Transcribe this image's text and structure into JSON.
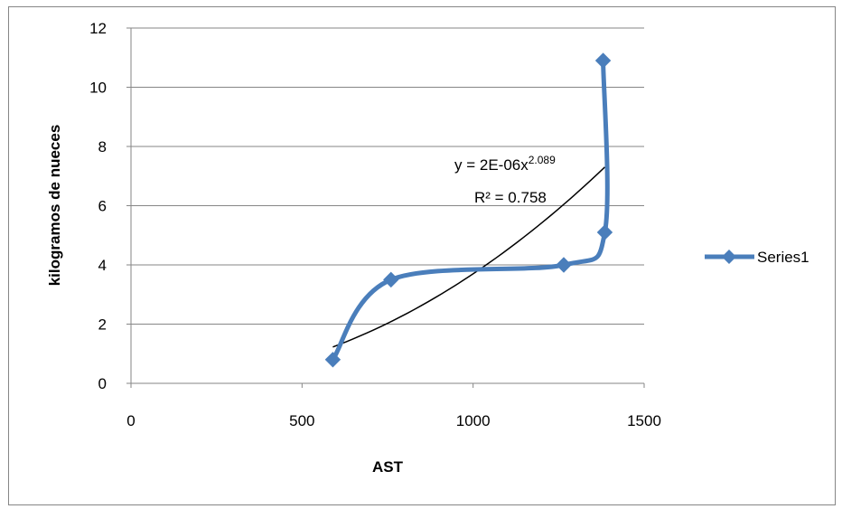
{
  "chart_data": {
    "type": "scatter",
    "xlabel": "AST",
    "ylabel": "kilogramos de nueces",
    "xlim": [
      0,
      1500
    ],
    "ylim": [
      0,
      12
    ],
    "x_ticks": [
      "0",
      "500",
      "1000",
      "1500"
    ],
    "y_ticks": [
      "0",
      "2",
      "4",
      "6",
      "8",
      "10",
      "12"
    ],
    "grid": "horizontal",
    "legend_position": "right",
    "series": [
      {
        "name": "Series1",
        "color": "#4a7ebb",
        "marker": "diamond",
        "line": "smooth",
        "x": [
          590,
          760,
          1265,
          1385,
          1380
        ],
        "y": [
          0.8,
          3.5,
          4.0,
          5.1,
          10.9
        ]
      }
    ],
    "trendline": {
      "type": "power",
      "color": "#000000",
      "x_range": [
        590,
        1385
      ],
      "coef": 2e-06,
      "exponent": 2.089,
      "equation_text": "y = 2E-06x",
      "equation_exponent": "2.089",
      "r2_text": "R² = 0.758"
    }
  }
}
